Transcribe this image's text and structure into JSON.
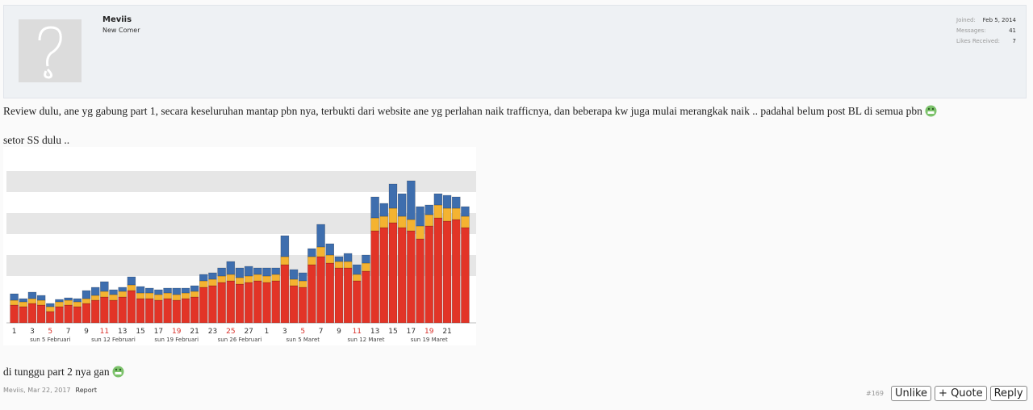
{
  "user": {
    "name": "Meviis",
    "title": "New Comer",
    "stats": [
      {
        "label": "Joined:",
        "value": "Feb 5, 2014"
      },
      {
        "label": "Messages:",
        "value": 41
      },
      {
        "label": "Likes Received:",
        "value": 7
      }
    ]
  },
  "post": {
    "paragraphs": [
      "Review dulu, ane yg gabung part 1, secara keseluruhan mantap pbn nya, terbukti dari website ane yg perlahan naik trafficnya, dan beberapa kw juga mulai merangkak naik .. padahal belum post BL di semua pbn",
      "setor SS dulu ..",
      "di tunggu part 2 nya gan"
    ]
  },
  "chart_data": {
    "type": "stacked_bar",
    "categories": [
      "1",
      null,
      "3",
      null,
      "5",
      null,
      "7",
      null,
      "9",
      null,
      "11",
      null,
      "13",
      null,
      "15",
      null,
      "17",
      null,
      "19",
      null,
      "21",
      null,
      "23",
      null,
      "25",
      null,
      "27",
      null,
      "1",
      null,
      "3",
      null,
      "5",
      null,
      "7",
      null,
      "9",
      null,
      "11",
      null,
      "13",
      null,
      "15",
      null,
      "17",
      null,
      "19",
      null,
      "21",
      null,
      null
    ],
    "week_labels": [
      "sun 5 Februari",
      "sun 12 Februari",
      "sun 19 Februari",
      "sun 26 Februari",
      "sun 5 Maret",
      "sun 12 Maret",
      "sun 19 Maret"
    ],
    "ylim": [
      0,
      210
    ],
    "series": [
      {
        "color": "#e23427",
        "values": [
          22,
          20,
          24,
          22,
          14,
          20,
          22,
          20,
          24,
          28,
          32,
          28,
          32,
          40,
          30,
          30,
          28,
          30,
          28,
          30,
          32,
          44,
          46,
          50,
          52,
          48,
          50,
          52,
          50,
          52,
          72,
          46,
          44,
          72,
          82,
          74,
          68,
          68,
          52,
          64,
          114,
          118,
          124,
          118,
          114,
          104,
          120,
          130,
          126,
          128,
          118
        ]
      },
      {
        "color": "#f4b331",
        "values": [
          6,
          6,
          6,
          6,
          6,
          6,
          6,
          6,
          6,
          6,
          7,
          7,
          7,
          7,
          7,
          7,
          7,
          7,
          7,
          7,
          7,
          8,
          8,
          8,
          8,
          8,
          8,
          8,
          8,
          8,
          10,
          8,
          8,
          10,
          12,
          10,
          8,
          8,
          8,
          10,
          16,
          14,
          18,
          14,
          14,
          16,
          14,
          16,
          16,
          14,
          14
        ]
      },
      {
        "color": "#3e6eae",
        "values": [
          8,
          4,
          8,
          6,
          4,
          3,
          3,
          4,
          10,
          10,
          12,
          6,
          5,
          10,
          8,
          6,
          6,
          6,
          8,
          6,
          7,
          8,
          8,
          10,
          16,
          12,
          12,
          8,
          10,
          8,
          26,
          12,
          10,
          10,
          28,
          14,
          6,
          10,
          12,
          10,
          26,
          16,
          30,
          28,
          48,
          24,
          12,
          14,
          16,
          14,
          12
        ]
      }
    ]
  },
  "footer": {
    "author_date": "Meviis, Mar 22, 2017",
    "report": "Report",
    "post_number": "#169",
    "buttons": [
      "Unlike",
      "+ Quote",
      "Reply"
    ]
  }
}
